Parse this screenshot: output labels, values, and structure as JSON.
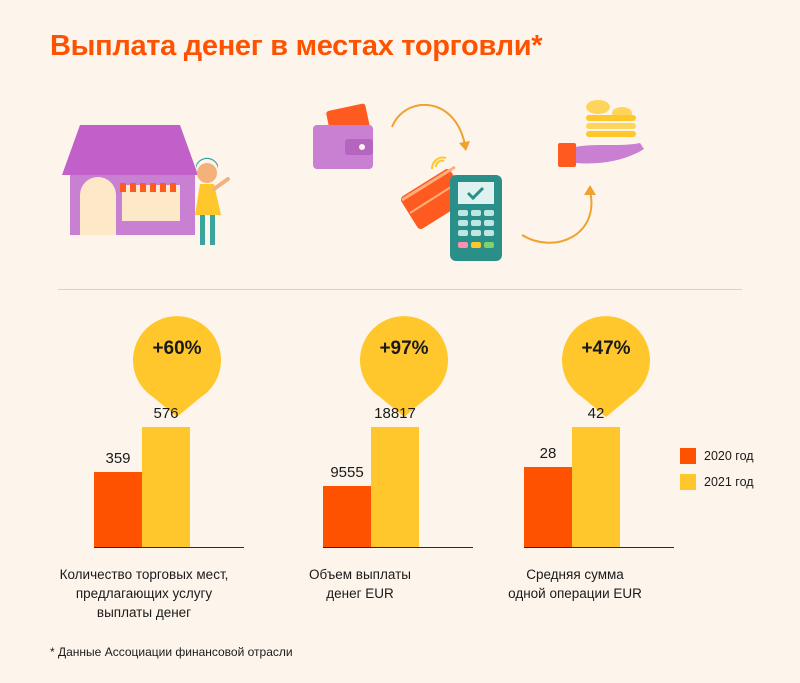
{
  "title": "Выплата денег в местах торговли*",
  "chart_data": {
    "type": "bar",
    "groups": [
      {
        "label": "Количество торговых мест,\nпредлагающих услугу\nвыплаты денег",
        "growth": "+60%",
        "values": [
          359,
          576
        ],
        "value_labels": [
          "359",
          "576"
        ]
      },
      {
        "label": "Объем выплаты\nденег EUR",
        "growth": "+97%",
        "values": [
          9555,
          18817
        ],
        "value_labels": [
          "9555",
          "18817"
        ]
      },
      {
        "label": "Средняя сумма\nодной операции EUR",
        "growth": "+47%",
        "values": [
          28,
          42
        ],
        "value_labels": [
          "28",
          "42"
        ]
      }
    ],
    "series": [
      {
        "name": "2020 год",
        "color": "#ff5200"
      },
      {
        "name": "2021 год",
        "color": "#ffc72c"
      }
    ],
    "legend_position": "right",
    "grid": false
  },
  "footnote": "* Данные Ассоциации финансовой отрасли"
}
